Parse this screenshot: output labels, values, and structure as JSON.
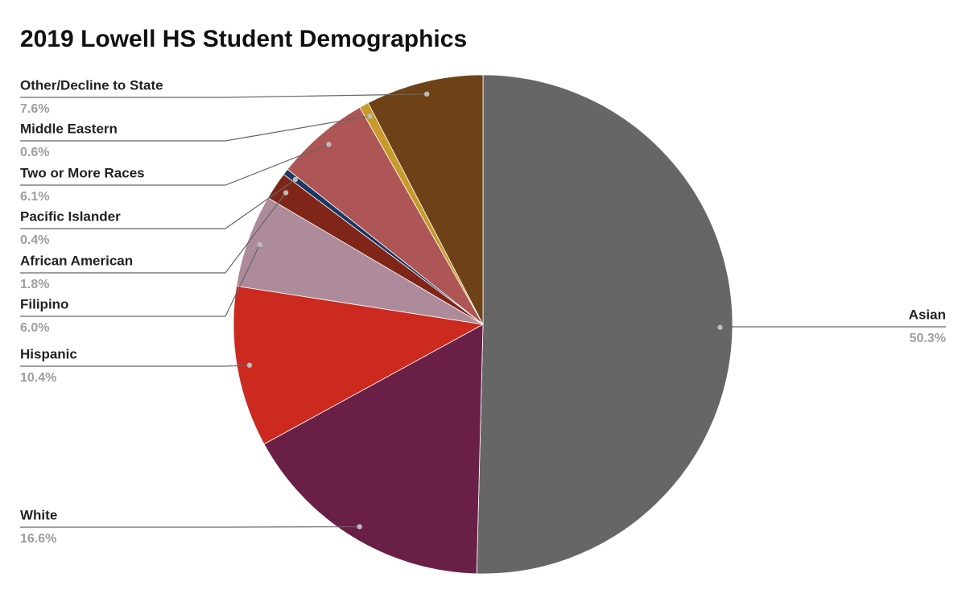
{
  "chart_data": {
    "type": "pie",
    "title": "2019 Lowell HS Student Demographics",
    "categories": [
      "Asian",
      "White",
      "Hispanic",
      "Filipino",
      "African American",
      "Pacific Islander",
      "Two or More Races",
      "Middle Eastern",
      "Other/Decline to State"
    ],
    "values": [
      50.3,
      16.6,
      10.4,
      6.0,
      1.8,
      0.4,
      6.1,
      0.6,
      7.6
    ],
    "value_labels": [
      "50.3%",
      "16.6%",
      "10.4%",
      "6.0%",
      "1.8%",
      "0.4%",
      "6.1%",
      "0.6%",
      "7.6%"
    ],
    "colors": [
      "#666666",
      "#6a2046",
      "#cc2a1f",
      "#ae8b9a",
      "#7f2618",
      "#1c3763",
      "#ad5655",
      "#c89a2a",
      "#6e4216"
    ]
  }
}
